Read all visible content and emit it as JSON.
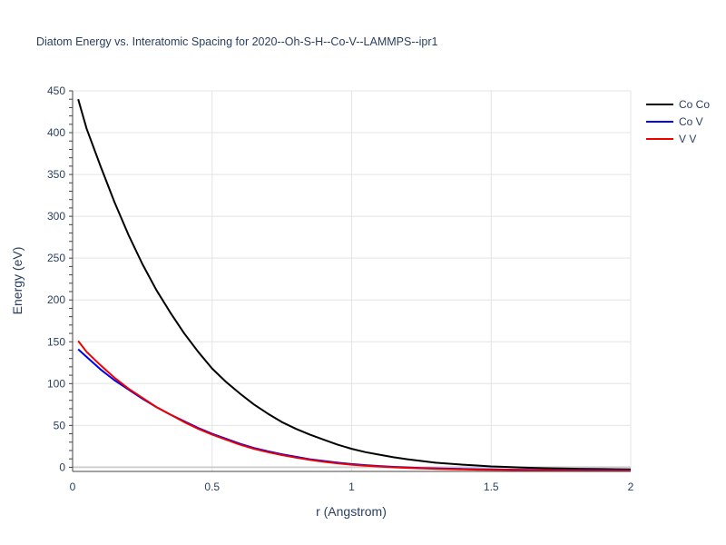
{
  "chart_data": {
    "type": "line",
    "title": "Diatom Energy vs. Interatomic Spacing for 2020--Oh-S-H--Co-V--LAMMPS--ipr1",
    "xlabel": "r (Angstrom)",
    "ylabel": "Energy (eV)",
    "xlim": [
      0,
      2
    ],
    "ylim": [
      -5,
      450
    ],
    "xticks": [
      0,
      0.5,
      1,
      1.5,
      2
    ],
    "xtick_labels": [
      "0",
      "0.5",
      "1",
      "1.5",
      "2"
    ],
    "yticks": [
      0,
      50,
      100,
      150,
      200,
      250,
      300,
      350,
      400,
      450
    ],
    "ytick_labels": [
      "0",
      "50",
      "100",
      "150",
      "200",
      "250",
      "300",
      "350",
      "400",
      "450"
    ],
    "grid": true,
    "legend_position": "top-right",
    "x": [
      0.02,
      0.05,
      0.1,
      0.15,
      0.2,
      0.25,
      0.3,
      0.35,
      0.4,
      0.45,
      0.5,
      0.55,
      0.6,
      0.65,
      0.7,
      0.75,
      0.8,
      0.85,
      0.9,
      0.95,
      1.0,
      1.05,
      1.1,
      1.15,
      1.2,
      1.25,
      1.3,
      1.35,
      1.4,
      1.45,
      1.5,
      1.55,
      1.6,
      1.65,
      1.7,
      1.75,
      1.8,
      1.85,
      1.9,
      1.95,
      2.0
    ],
    "series": [
      {
        "name": "Co Co",
        "color": "#000000",
        "values": [
          440,
          405,
          360,
          317,
          278,
          243,
          212,
          185,
          160,
          138,
          118,
          102,
          88,
          75,
          64,
          54,
          46,
          39,
          33,
          27,
          22,
          18,
          15,
          12,
          9.5,
          7.5,
          5.5,
          4.2,
          3.0,
          2.0,
          1.0,
          0.4,
          -0.3,
          -0.8,
          -1.2,
          -1.5,
          -1.8,
          -2.0,
          -2.2,
          -2.4,
          -2.5
        ]
      },
      {
        "name": "Co V",
        "color": "#0000ee",
        "values": [
          141,
          132,
          117,
          104,
          93,
          82,
          72,
          63,
          55,
          47,
          40,
          34,
          28,
          23,
          19,
          15.5,
          12.5,
          9.5,
          7.5,
          5.5,
          3.8,
          2.5,
          1.4,
          0.5,
          -0.3,
          -0.9,
          -1.4,
          -1.8,
          -2.1,
          -2.4,
          -2.6,
          -2.8,
          -3.0,
          -3.1,
          -3.2,
          -3.3,
          -3.4,
          -3.4,
          -3.5,
          -3.5,
          -3.5
        ]
      },
      {
        "name": "V V",
        "color": "#ee0000",
        "values": [
          151,
          138,
          122,
          107,
          94,
          83,
          72,
          63,
          54,
          46,
          39,
          33,
          27,
          22,
          18,
          14.5,
          11.5,
          8.8,
          6.5,
          4.6,
          3.0,
          1.8,
          0.8,
          -0.1,
          -0.8,
          -1.4,
          -1.9,
          -2.3,
          -2.6,
          -2.9,
          -3.1,
          -3.3,
          -3.5,
          -3.6,
          -3.7,
          -3.8,
          -3.9,
          -4.0,
          -4.0,
          -4.1,
          -4.1
        ]
      }
    ]
  }
}
